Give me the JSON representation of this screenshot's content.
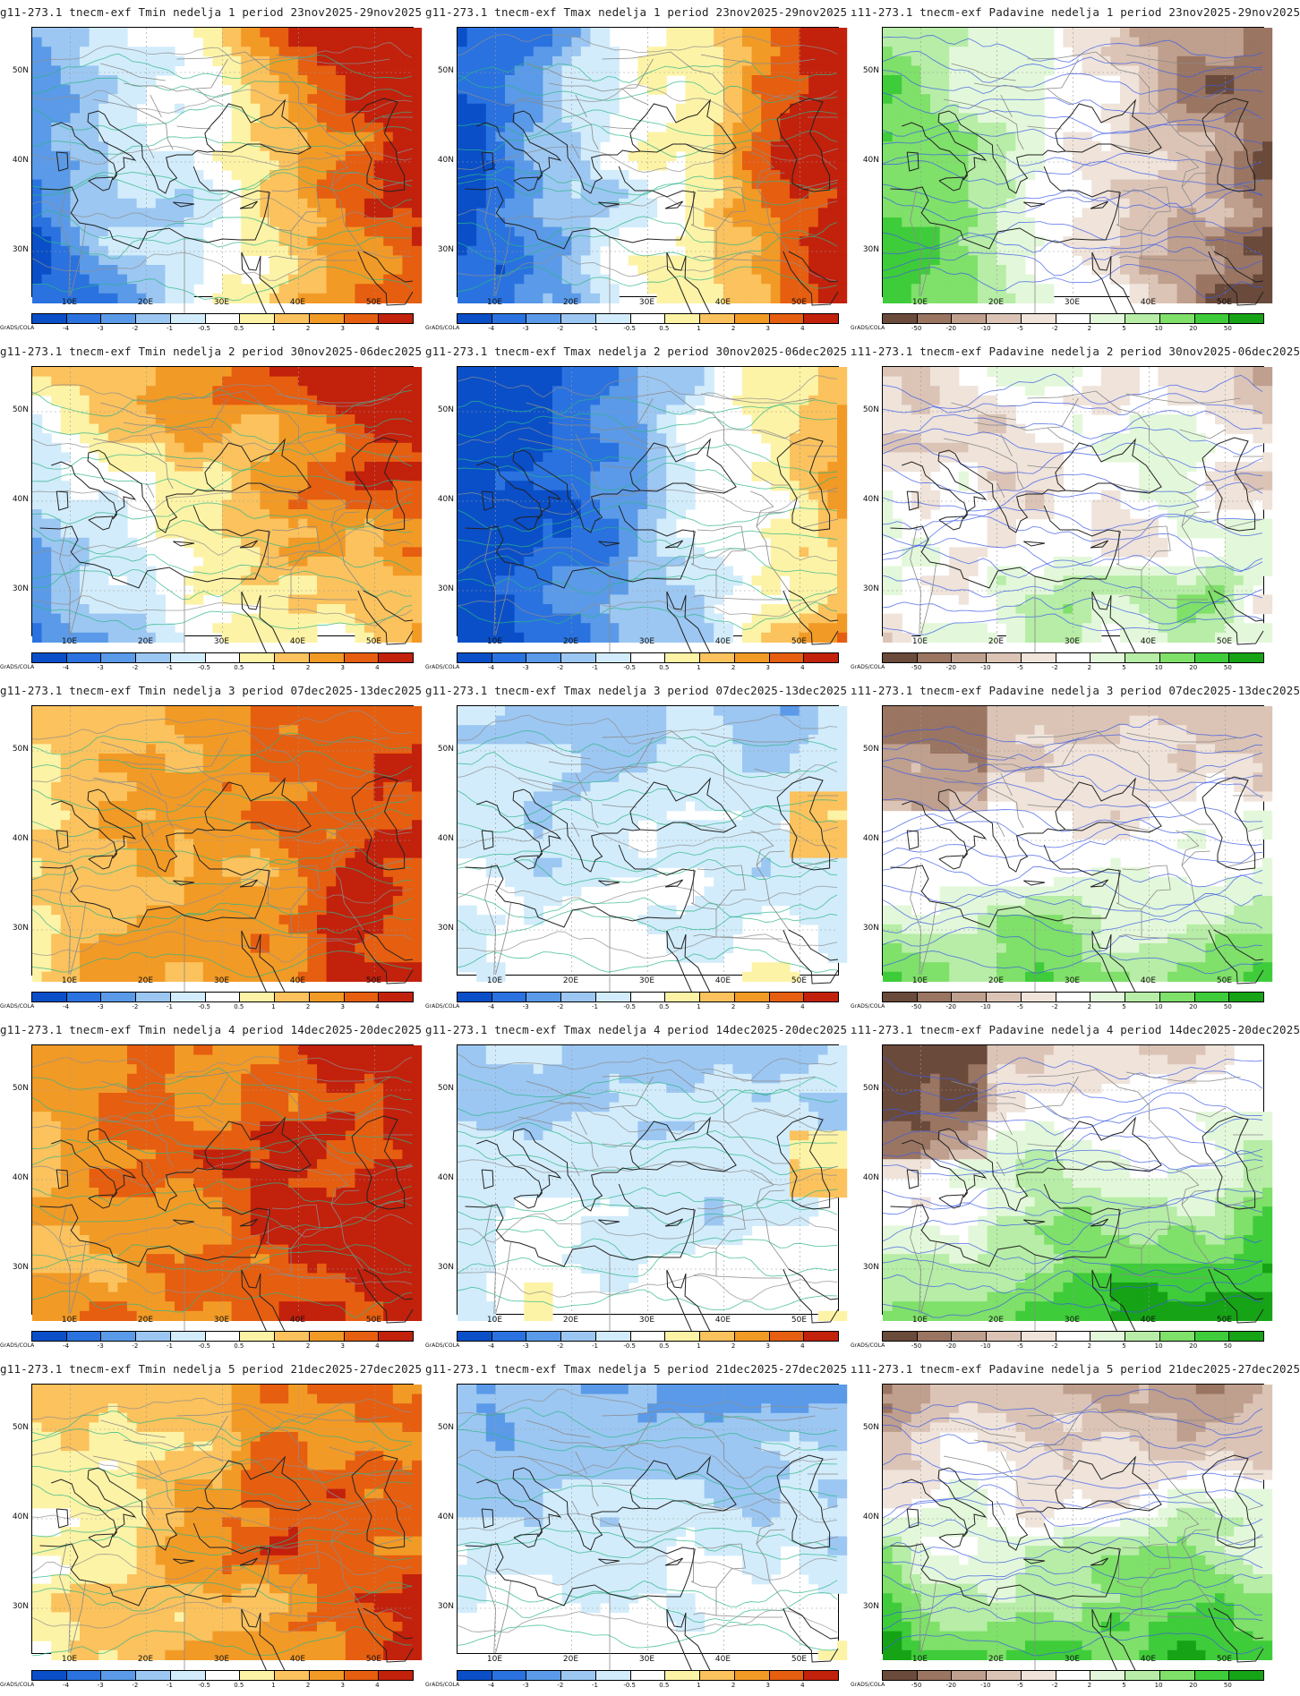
{
  "credit": "GrADS/COLA",
  "lat_labels": [
    "50N",
    "40N",
    "30N"
  ],
  "lon_labels": [
    "10E",
    "20E",
    "30E",
    "40E",
    "50E"
  ],
  "temp_scale": {
    "labels": [
      "-4",
      "-3",
      "-2",
      "-1",
      "-0.5",
      "0.5",
      "1",
      "2",
      "3",
      "4"
    ],
    "colors": [
      "#0a4fc8",
      "#2a72df",
      "#5a9ae8",
      "#9cc7f2",
      "#d2ecfb",
      "#ffffff",
      "#fdf3a6",
      "#fbc25d",
      "#f29a26",
      "#e65e10",
      "#c2210c"
    ]
  },
  "precip_scale": {
    "labels": [
      "-50",
      "-20",
      "-10",
      "-5",
      "-2",
      "2",
      "5",
      "10",
      "20",
      "50"
    ],
    "colors": [
      "#6a4a3a",
      "#9a7562",
      "#bf9f8d",
      "#dbc4b6",
      "#efe3da",
      "#ffffff",
      "#e3f8da",
      "#b7eda7",
      "#7fe06a",
      "#3fcc3a",
      "#16a316"
    ]
  },
  "rows": [
    {
      "week": 1,
      "tmin": {
        "title": "g11-273.1 tnecm-exf Tmin nedelja 1 period 23nov2025-29nov2025",
        "pattern": "east-warm"
      },
      "tmax": {
        "title": "g11-273.1 tnecm-exf Tmax nedelja 1 period 23nov2025-29nov2025",
        "pattern": "east-warm-west-cold"
      },
      "precip": {
        "title": "ı11-273.1 tnecm-exf Padavine nedelja 1 period 23nov2025-29nov2025",
        "pattern": "west-wet-east-dry"
      }
    },
    {
      "week": 2,
      "tmin": {
        "title": "g11-273.1 tnecm-exf Tmin nedelja 2 period 30nov2025-06dec2025",
        "pattern": "north-east-warm"
      },
      "tmax": {
        "title": "g11-273.1 tnecm-exf Tmax nedelja 2 period 30nov2025-06dec2025",
        "pattern": "west-cold-east-warm"
      },
      "precip": {
        "title": "ı11-273.1 tnecm-exf Padavine nedelja 2 period 30nov2025-06dec2025",
        "pattern": "mixed"
      }
    },
    {
      "week": 3,
      "tmin": {
        "title": "g11-273.1 tnecm-exf Tmin nedelja 3 period 07dec2025-13dec2025",
        "pattern": "warm"
      },
      "tmax": {
        "title": "g11-273.1 tnecm-exf Tmax nedelja 3 period 07dec2025-13dec2025",
        "pattern": "cold"
      },
      "precip": {
        "title": "ı11-273.1 tnecm-exf Padavine nedelja 3 period 07dec2025-13dec2025",
        "pattern": "south-wet"
      }
    },
    {
      "week": 4,
      "tmin": {
        "title": "g11-273.1 tnecm-exf Tmin nedelja 4 period 14dec2025-20dec2025",
        "pattern": "very-warm"
      },
      "tmax": {
        "title": "g11-273.1 tnecm-exf Tmax nedelja 4 period 14dec2025-20dec2025",
        "pattern": "cold"
      },
      "precip": {
        "title": "ı11-273.1 tnecm-exf Padavine nedelja 4 period 14dec2025-20dec2025",
        "pattern": "south-east-wet"
      }
    },
    {
      "week": 5,
      "tmin": {
        "title": "g11-273.1 tnecm-exf Tmin nedelja 5 period 21dec2025-27dec2025",
        "pattern": "warm"
      },
      "tmax": {
        "title": "g11-273.1 tnecm-exf Tmax nedelja 5 period 21dec2025-27dec2025",
        "pattern": "very-cold"
      },
      "precip": {
        "title": "ı11-273.1 tnecm-exf Padavine nedelja 5 period 21dec2025-27dec2025",
        "pattern": "south-wet-north-dry"
      }
    }
  ]
}
